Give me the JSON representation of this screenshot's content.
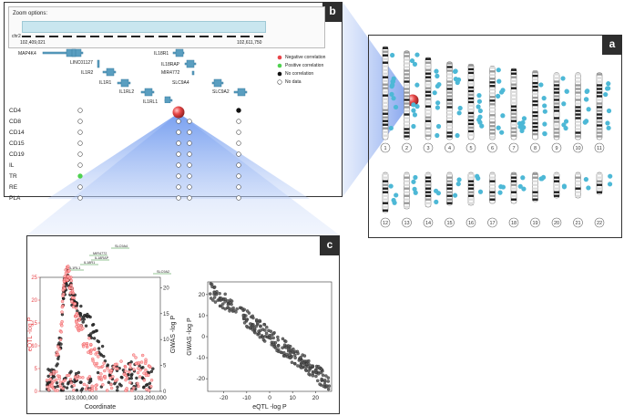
{
  "panel_a": {
    "label": "a",
    "chromosomes": [
      "1",
      "2",
      "3",
      "4",
      "5",
      "6",
      "7",
      "8",
      "9",
      "10",
      "11",
      "12",
      "13",
      "14",
      "15",
      "16",
      "17",
      "18",
      "19",
      "20",
      "21",
      "22"
    ]
  },
  "panel_b": {
    "label": "b",
    "zoom_label": "Zoom options:",
    "chr_label": "chr2",
    "range_start": "102,409,021",
    "range_end": "102,611,750",
    "genes": [
      "MAP4K4",
      "LINC01127",
      "IL1R2",
      "IL1R1",
      "IL1RL2",
      "IL1RL1",
      "IL18R1",
      "IL18RAP",
      "MIR4772",
      "SLC9A4",
      "SLC9A2"
    ],
    "legend": [
      "Negative correlation",
      "Positive correlation",
      "No correlation",
      "No data"
    ],
    "tissues": [
      "CD4",
      "CD8",
      "CD14",
      "CD15",
      "CD19",
      "IL",
      "TR",
      "RE",
      "PLA"
    ],
    "colors": {
      "negative": "#e8454a",
      "positive": "#4fd14f",
      "none": "#111111",
      "nodata": "#ffffff",
      "accent": "#5b8ff0"
    }
  },
  "panel_c": {
    "label": "c",
    "genes_small": [
      "SLC9A4",
      "MIR4772",
      "IL18RAP",
      "IL18R1",
      "IL1RL1",
      "SLC9A2"
    ],
    "chart_data": [
      {
        "type": "scatter",
        "title": "",
        "xlabel": "Coordinate",
        "ylabel_left": "eQTL -log P",
        "ylabel_right": "GWAS -log P",
        "x_ticks": [
          "103,000,000",
          "103,200,000"
        ],
        "x_tick_values": [
          103000000,
          103200000
        ],
        "xlim": [
          102880000,
          103230000
        ],
        "ylim_left": [
          0,
          25
        ],
        "ylim_right": [
          0,
          22
        ],
        "y_ticks_left": [
          0,
          5,
          10,
          15,
          20,
          25
        ],
        "y_ticks_right": [
          0,
          5,
          10,
          15,
          20
        ],
        "series": [
          {
            "name": "eQTL",
            "color": "#e8454a",
            "axis": "left",
            "approx_clusters": [
              [
                102900000,
                2
              ],
              [
                102920000,
                3
              ],
              [
                102940000,
                12
              ],
              [
                102950000,
                24
              ],
              [
                102960000,
                26
              ],
              [
                102970000,
                23
              ],
              [
                102980000,
                18
              ],
              [
                102990000,
                15
              ],
              [
                103010000,
                11
              ],
              [
                103030000,
                9
              ],
              [
                103050000,
                6
              ],
              [
                103080000,
                3
              ],
              [
                103120000,
                5
              ],
              [
                103150000,
                6
              ],
              [
                103180000,
                6
              ],
              [
                103210000,
                5
              ]
            ]
          },
          {
            "name": "GWAS",
            "color": "#2b2b2b",
            "axis": "right",
            "approx_clusters": [
              [
                102900000,
                2
              ],
              [
                102920000,
                4
              ],
              [
                102940000,
                10
              ],
              [
                102950000,
                20
              ],
              [
                102960000,
                22
              ],
              [
                102970000,
                19
              ],
              [
                102980000,
                17
              ],
              [
                102990000,
                15
              ],
              [
                103010000,
                14
              ],
              [
                103030000,
                12
              ],
              [
                103060000,
                8
              ],
              [
                103100000,
                3
              ],
              [
                103140000,
                4
              ],
              [
                103170000,
                3
              ],
              [
                103210000,
                3
              ]
            ]
          }
        ]
      },
      {
        "type": "scatter",
        "xlabel": "eQTL -log P",
        "ylabel": "GWAS -log P",
        "xlim": [
          -27,
          27
        ],
        "ylim": [
          -26,
          26
        ],
        "x_ticks": [
          -20,
          -10,
          0,
          10,
          20
        ],
        "y_ticks": [
          -20,
          -10,
          0,
          10,
          20
        ],
        "trend": {
          "slope": -0.85,
          "intercept": 0
        }
      }
    ]
  }
}
